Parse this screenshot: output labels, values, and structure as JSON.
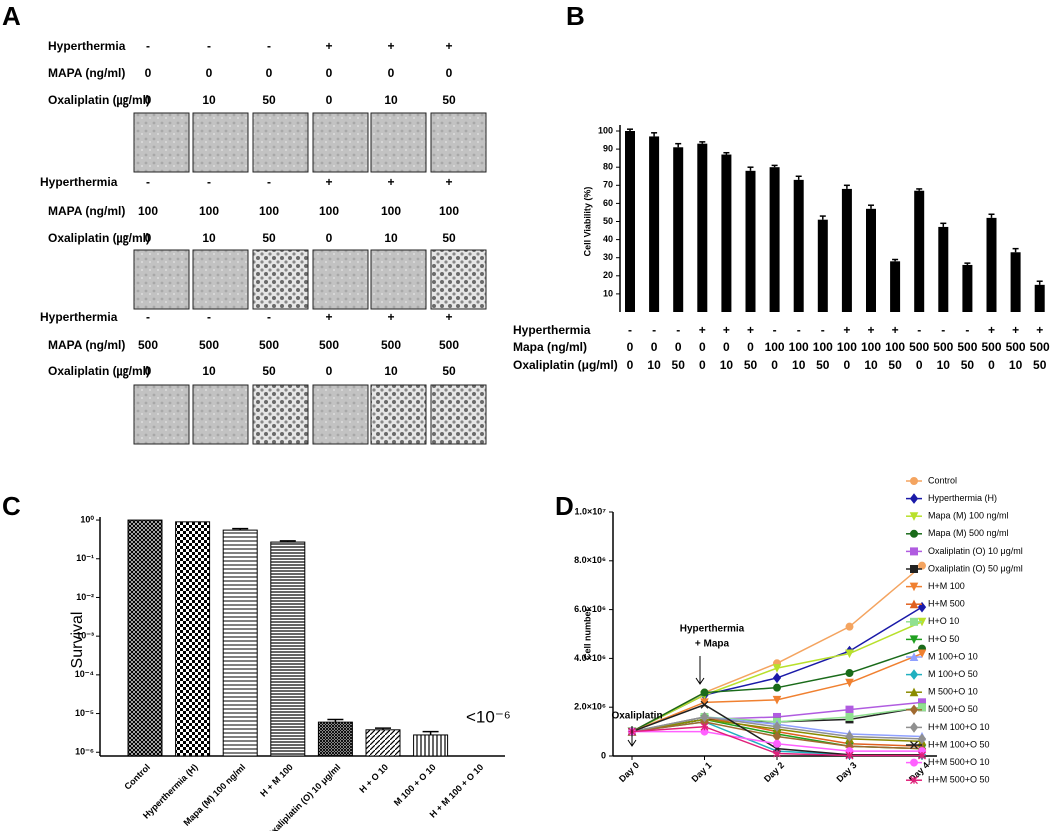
{
  "panel_a": {
    "panel_label": "A",
    "groups": [
      {
        "rows": [
          {
            "label": "Hyperthermia",
            "values": [
              "-",
              "-",
              "-",
              "+",
              "+",
              "+"
            ]
          },
          {
            "label": "MAPA (ng/ml)",
            "values": [
              "0",
              "0",
              "0",
              "0",
              "0",
              "0"
            ]
          },
          {
            "label": "Oxaliplatin (㎍/ml)",
            "values": [
              "0",
              "10",
              "50",
              "0",
              "10",
              "50"
            ]
          }
        ]
      },
      {
        "rows": [
          {
            "label": "Hyperthermia",
            "values": [
              "-",
              "-",
              "-",
              "+",
              "+",
              "+"
            ]
          },
          {
            "label": "MAPA (ng/ml)",
            "values": [
              "100",
              "100",
              "100",
              "100",
              "100",
              "100"
            ]
          },
          {
            "label": "Oxaliplatin (㎍/ml)",
            "values": [
              "0",
              "10",
              "50",
              "0",
              "10",
              "50"
            ]
          }
        ]
      },
      {
        "rows": [
          {
            "label": "Hyperthermia",
            "values": [
              "-",
              "-",
              "-",
              "+",
              "+",
              "+"
            ]
          },
          {
            "label": "MAPA (ng/ml)",
            "values": [
              "500",
              "500",
              "500",
              "500",
              "500",
              "500"
            ]
          },
          {
            "label": "Oxaliplatin (㎍/ml)",
            "values": [
              "0",
              "10",
              "50",
              "0",
              "10",
              "50"
            ]
          }
        ]
      }
    ]
  },
  "chart_data": [
    {
      "type": "bar",
      "panel_label": "B",
      "y_label": "Cell Viability (%)",
      "color": "#000000",
      "values": [
        100,
        97,
        91,
        93,
        87,
        78,
        80,
        73,
        51,
        68,
        57,
        28,
        67,
        47,
        26,
        52,
        33,
        15
      ],
      "errors": [
        1,
        2,
        2,
        1,
        1,
        2,
        1,
        2,
        2,
        2,
        2,
        1,
        1,
        2,
        1,
        2,
        2,
        2
      ],
      "ylim": [
        0,
        100
      ],
      "yticks": [
        10,
        20,
        30,
        40,
        50,
        60,
        70,
        80,
        90,
        100
      ],
      "condition_rows": [
        {
          "label": "Hyperthermia",
          "values": [
            "-",
            "-",
            "-",
            "+",
            "+",
            "+",
            "-",
            "-",
            "-",
            "+",
            "+",
            "+",
            "-",
            "-",
            "-",
            "+",
            "+",
            "+"
          ]
        },
        {
          "label": "Mapa (ng/ml)",
          "values": [
            "0",
            "0",
            "0",
            "0",
            "0",
            "0",
            "100",
            "100",
            "100",
            "100",
            "100",
            "100",
            "500",
            "500",
            "500",
            "500",
            "500",
            "500"
          ]
        },
        {
          "label": "Oxaliplatin (μg/ml)",
          "values": [
            "0",
            "10",
            "50",
            "0",
            "10",
            "50",
            "0",
            "10",
            "50",
            "0",
            "10",
            "50",
            "0",
            "10",
            "50",
            "0",
            "10",
            "50"
          ]
        }
      ]
    },
    {
      "type": "bar",
      "panel_label": "C",
      "y_label": "Survival",
      "log_scale": true,
      "categories": [
        "Control",
        "Hyperthermia (H)",
        "Mapa (M) 100 ng/ml",
        "H + M 100",
        "Oxaliplatin (O) 10 μg/ml",
        "H + O 10",
        "M 100 + O 10",
        "H + M 100 + O 10"
      ],
      "values": [
        1,
        0.9,
        0.55,
        0.27,
        6e-06,
        3.8e-06,
        2.8e-06,
        null
      ],
      "errors": [
        null,
        null,
        0.05,
        0.02,
        1e-06,
        4e-07,
        6e-07,
        null
      ],
      "ylim": [
        8e-07,
        1.2
      ],
      "yticks": [
        {
          "value": 1,
          "label": "10⁰"
        },
        {
          "value": 0.1,
          "label": "10⁻¹"
        },
        {
          "value": 0.01,
          "label": "10⁻²"
        },
        {
          "value": 0.001,
          "label": "10⁻³"
        },
        {
          "value": 0.0001,
          "label": "10⁻⁴"
        },
        {
          "value": 1e-05,
          "label": "10⁻⁵"
        },
        {
          "value": 1e-06,
          "label": "10⁻⁶"
        }
      ],
      "annotation": "<10⁻⁶"
    },
    {
      "type": "line",
      "panel_label": "D",
      "y_label": "Cell number",
      "legend": "right",
      "categories": [
        "Day 0",
        "Day 1",
        "Day 2",
        "Day 3",
        "Day 4"
      ],
      "ylim": [
        0,
        10000000
      ],
      "yticks": [
        0,
        {
          "value": 2000000,
          "label": "2.0×10⁶"
        },
        {
          "value": 4000000,
          "label": "4.0×10⁶"
        },
        {
          "value": 6000000,
          "label": "6.0×10⁶"
        },
        {
          "value": 8000000,
          "label": "8.0×10⁶"
        },
        {
          "value": 10000000,
          "label": "1.0×10⁷"
        }
      ],
      "annotations": [
        "Oxaliplatin",
        "Hyperthermia",
        "+ Mapa"
      ],
      "series": [
        {
          "name": "Control",
          "color": "#f4a460",
          "marker": "circle",
          "values": [
            1000000,
            2600000,
            3800000,
            5300000,
            7800000
          ]
        },
        {
          "name": "Hyperthermia (H)",
          "color": "#1a1aa8",
          "marker": "diamond",
          "values": [
            1000000,
            2500000,
            3200000,
            4300000,
            6100000
          ]
        },
        {
          "name": "Mapa (M) 100 ng/ml",
          "color": "#b8e02c",
          "marker": "triangle-down",
          "values": [
            1000000,
            2500000,
            3600000,
            4200000,
            5500000
          ]
        },
        {
          "name": "Mapa (M) 500 ng/ml",
          "color": "#1a6b1a",
          "marker": "circle",
          "values": [
            1000000,
            2600000,
            2800000,
            3400000,
            4400000
          ]
        },
        {
          "name": "Oxaliplatin (O) 10 μg/ml",
          "color": "#b05ce0",
          "marker": "square",
          "values": [
            1000000,
            1500000,
            1600000,
            1900000,
            2200000
          ]
        },
        {
          "name": "Oxaliplatin (O) 50 μg/ml",
          "color": "#222222",
          "marker": "square",
          "values": [
            1000000,
            1500000,
            1400000,
            1500000,
            2000000
          ]
        },
        {
          "name": "H+M 100",
          "color": "#f08030",
          "marker": "triangle-down",
          "values": [
            1000000,
            2200000,
            2300000,
            3000000,
            4200000
          ]
        },
        {
          "name": "H+M 500",
          "color": "#e06020",
          "marker": "triangle",
          "values": [
            1000000,
            1600000,
            1000000,
            500000,
            400000
          ]
        },
        {
          "name": "H+O 10",
          "color": "#90e090",
          "marker": "square",
          "values": [
            1000000,
            1600000,
            1400000,
            1600000,
            2000000
          ]
        },
        {
          "name": "H+O 50",
          "color": "#20a020",
          "marker": "triangle-down",
          "values": [
            1000000,
            1500000,
            900000,
            400000,
            300000
          ]
        },
        {
          "name": "M 100+O 10",
          "color": "#8fa0ff",
          "marker": "triangle",
          "values": [
            1000000,
            1600000,
            1300000,
            900000,
            800000
          ]
        },
        {
          "name": "M 100+O 50",
          "color": "#20b0c0",
          "marker": "diamond",
          "values": [
            1000000,
            1400000,
            200000,
            50000,
            50000
          ]
        },
        {
          "name": "M 500+O 10",
          "color": "#8b8b00",
          "marker": "triangle",
          "values": [
            1000000,
            1500000,
            1100000,
            700000,
            600000
          ]
        },
        {
          "name": "M 500+O 50",
          "color": "#a06a30",
          "marker": "diamond",
          "values": [
            1000000,
            1400000,
            800000,
            400000,
            300000
          ]
        },
        {
          "name": "H+M 100+O 10",
          "color": "#909090",
          "marker": "diamond",
          "values": [
            1000000,
            1600000,
            1200000,
            800000,
            700000
          ]
        },
        {
          "name": "H+M 100+O 50",
          "color": "#202020",
          "marker": "x",
          "values": [
            1000000,
            2100000,
            300000,
            50000,
            50000
          ]
        },
        {
          "name": "H+M 500+O 10",
          "color": "#ff60ff",
          "marker": "circle",
          "values": [
            1000000,
            1000000,
            500000,
            200000,
            200000
          ]
        },
        {
          "name": "H+M 500+O 50",
          "color": "#e0207a",
          "marker": "star",
          "values": [
            1000000,
            1200000,
            100000,
            20000,
            20000
          ]
        }
      ]
    }
  ]
}
